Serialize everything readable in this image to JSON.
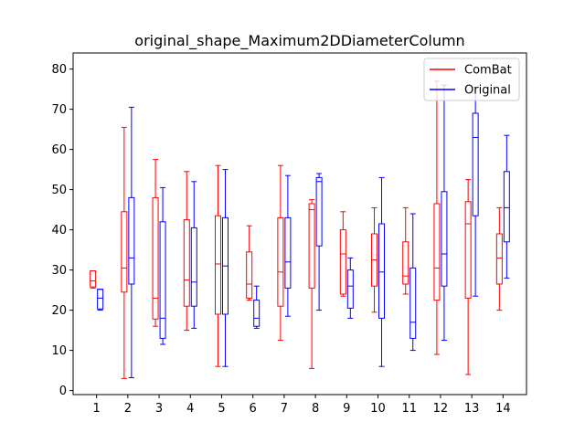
{
  "chart_data": {
    "type": "box",
    "title": "original_shape_Maximum2DDiameterColumn",
    "xlabel": "",
    "ylabel": "",
    "categories": [
      "1",
      "2",
      "3",
      "4",
      "5",
      "6",
      "7",
      "8",
      "9",
      "10",
      "11",
      "12",
      "13",
      "14"
    ],
    "ylim": [
      -1,
      84
    ],
    "yticks": [
      0,
      10,
      20,
      30,
      40,
      50,
      60,
      70,
      80
    ],
    "legend": {
      "placement": "upper-right"
    },
    "series": [
      {
        "name": "ComBat",
        "color": "#ff0000",
        "boxes": [
          {
            "whislo": 25.5,
            "q1": 25.8,
            "med": 27.3,
            "q3": 29.8,
            "whishi": 29.8
          },
          {
            "whislo": 3.0,
            "q1": 24.5,
            "med": 30.5,
            "q3": 44.5,
            "whishi": 65.5
          },
          {
            "whislo": 16.0,
            "q1": 17.8,
            "med": 23.0,
            "q3": 48.0,
            "whishi": 57.5
          },
          {
            "whislo": 15.0,
            "q1": 21.0,
            "med": 27.5,
            "q3": 42.5,
            "whishi": 54.5
          },
          {
            "whislo": 6.0,
            "q1": 19.0,
            "med": 31.5,
            "q3": 43.5,
            "whishi": 56.0
          },
          {
            "whislo": 22.5,
            "q1": 23.0,
            "med": 26.5,
            "q3": 34.5,
            "whishi": 41.0
          },
          {
            "whislo": 12.5,
            "q1": 21.0,
            "med": 29.5,
            "q3": 43.0,
            "whishi": 56.0
          },
          {
            "whislo": 5.5,
            "q1": 25.5,
            "med": 45.0,
            "q3": 46.5,
            "whishi": 47.5
          },
          {
            "whislo": 23.5,
            "q1": 24.0,
            "med": 34.0,
            "q3": 40.0,
            "whishi": 44.5
          },
          {
            "whislo": 19.5,
            "q1": 26.0,
            "med": 32.5,
            "q3": 39.0,
            "whishi": 45.5
          },
          {
            "whislo": 24.0,
            "q1": 26.5,
            "med": 28.5,
            "q3": 37.0,
            "whishi": 45.5
          },
          {
            "whislo": 9.0,
            "q1": 22.5,
            "med": 30.5,
            "q3": 46.5,
            "whishi": 77.0
          },
          {
            "whislo": 4.0,
            "q1": 23.0,
            "med": 41.5,
            "q3": 47.0,
            "whishi": 52.5
          },
          {
            "whislo": 20.0,
            "q1": 26.5,
            "med": 33.0,
            "q3": 39.0,
            "whishi": 45.5
          }
        ]
      },
      {
        "name": "Original",
        "color": "#0000ff",
        "boxes": [
          {
            "whislo": 20.0,
            "q1": 20.3,
            "med": 23.0,
            "q3": 25.2,
            "whishi": 25.2
          },
          {
            "whislo": 3.2,
            "q1": 26.5,
            "med": 33.0,
            "q3": 48.0,
            "whishi": 70.5
          },
          {
            "whislo": 11.5,
            "q1": 13.0,
            "med": 18.0,
            "q3": 42.0,
            "whishi": 50.5
          },
          {
            "whislo": 15.5,
            "q1": 21.0,
            "med": 27.0,
            "q3": 40.5,
            "whishi": 52.0
          },
          {
            "whislo": 6.0,
            "q1": 19.0,
            "med": 31.0,
            "q3": 43.0,
            "whishi": 55.0
          },
          {
            "whislo": 15.5,
            "q1": 16.0,
            "med": 18.0,
            "q3": 22.5,
            "whishi": 26.0
          },
          {
            "whislo": 18.5,
            "q1": 25.5,
            "med": 32.0,
            "q3": 43.0,
            "whishi": 53.5
          },
          {
            "whislo": 20.0,
            "q1": 36.0,
            "med": 52.0,
            "q3": 53.0,
            "whishi": 54.0
          },
          {
            "whislo": 18.0,
            "q1": 20.5,
            "med": 26.0,
            "q3": 30.0,
            "whishi": 33.0
          },
          {
            "whislo": 6.0,
            "q1": 18.0,
            "med": 29.5,
            "q3": 41.5,
            "whishi": 53.0
          },
          {
            "whislo": 10.0,
            "q1": 13.0,
            "med": 17.0,
            "q3": 30.5,
            "whishi": 44.0
          },
          {
            "whislo": 12.5,
            "q1": 26.0,
            "med": 34.0,
            "q3": 49.5,
            "whishi": 76.0
          },
          {
            "whislo": 23.5,
            "q1": 43.5,
            "med": 63.0,
            "q3": 69.0,
            "whishi": 75.5
          },
          {
            "whislo": 28.0,
            "q1": 37.0,
            "med": 45.5,
            "q3": 54.5,
            "whishi": 63.5
          }
        ]
      }
    ]
  }
}
